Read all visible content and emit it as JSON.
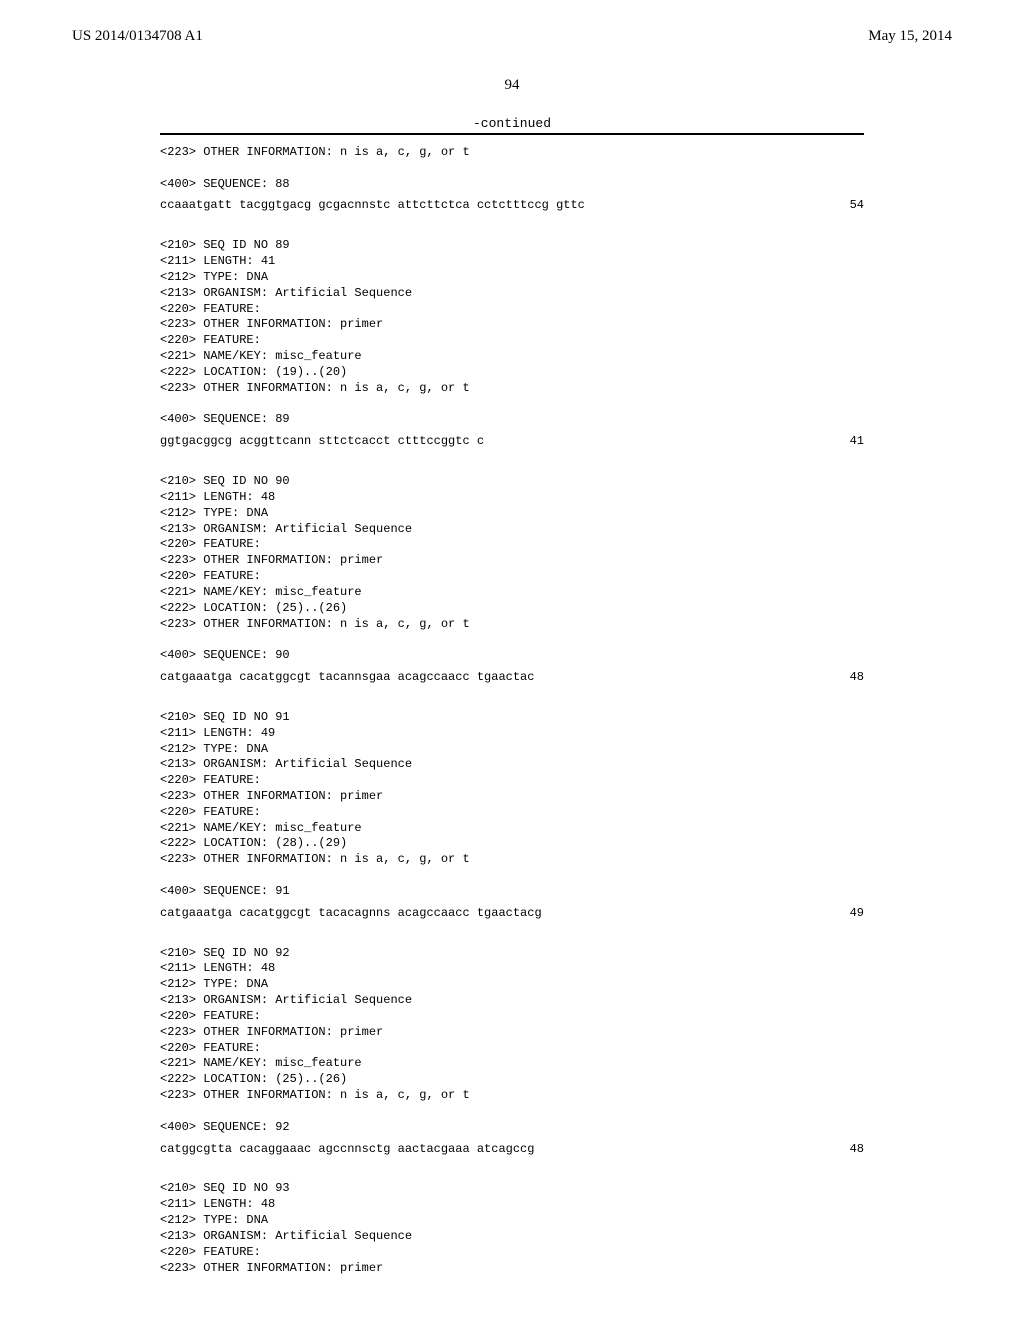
{
  "header": {
    "pub_num": "US 2014/0134708 A1",
    "pub_date": "May 15, 2014"
  },
  "page_num": "94",
  "continued_label": "-continued",
  "entries": [
    {
      "pre": [
        "<223> OTHER INFORMATION: n is a, c, g, or t",
        "",
        "<400> SEQUENCE: 88"
      ],
      "sequence": "ccaaatgatt tacggtgacg gcgacnnstc attcttctca cctctttccg gttc",
      "seqnum": "54"
    },
    {
      "pre": [
        "<210> SEQ ID NO 89",
        "<211> LENGTH: 41",
        "<212> TYPE: DNA",
        "<213> ORGANISM: Artificial Sequence",
        "<220> FEATURE:",
        "<223> OTHER INFORMATION: primer",
        "<220> FEATURE:",
        "<221> NAME/KEY: misc_feature",
        "<222> LOCATION: (19)..(20)",
        "<223> OTHER INFORMATION: n is a, c, g, or t",
        "",
        "<400> SEQUENCE: 89"
      ],
      "sequence": "ggtgacggcg acggttcann sttctcacct ctttccggtc c",
      "seqnum": "41"
    },
    {
      "pre": [
        "<210> SEQ ID NO 90",
        "<211> LENGTH: 48",
        "<212> TYPE: DNA",
        "<213> ORGANISM: Artificial Sequence",
        "<220> FEATURE:",
        "<223> OTHER INFORMATION: primer",
        "<220> FEATURE:",
        "<221> NAME/KEY: misc_feature",
        "<222> LOCATION: (25)..(26)",
        "<223> OTHER INFORMATION: n is a, c, g, or t",
        "",
        "<400> SEQUENCE: 90"
      ],
      "sequence": "catgaaatga cacatggcgt tacannsgaa acagccaacc tgaactac",
      "seqnum": "48"
    },
    {
      "pre": [
        "<210> SEQ ID NO 91",
        "<211> LENGTH: 49",
        "<212> TYPE: DNA",
        "<213> ORGANISM: Artificial Sequence",
        "<220> FEATURE:",
        "<223> OTHER INFORMATION: primer",
        "<220> FEATURE:",
        "<221> NAME/KEY: misc_feature",
        "<222> LOCATION: (28)..(29)",
        "<223> OTHER INFORMATION: n is a, c, g, or t",
        "",
        "<400> SEQUENCE: 91"
      ],
      "sequence": "catgaaatga cacatggcgt tacacagnns acagccaacc tgaactacg",
      "seqnum": "49"
    },
    {
      "pre": [
        "<210> SEQ ID NO 92",
        "<211> LENGTH: 48",
        "<212> TYPE: DNA",
        "<213> ORGANISM: Artificial Sequence",
        "<220> FEATURE:",
        "<223> OTHER INFORMATION: primer",
        "<220> FEATURE:",
        "<221> NAME/KEY: misc_feature",
        "<222> LOCATION: (25)..(26)",
        "<223> OTHER INFORMATION: n is a, c, g, or t",
        "",
        "<400> SEQUENCE: 92"
      ],
      "sequence": "catggcgtta cacaggaaac agccnnsctg aactacgaaa atcagccg",
      "seqnum": "48"
    },
    {
      "pre": [
        "<210> SEQ ID NO 93",
        "<211> LENGTH: 48",
        "<212> TYPE: DNA",
        "<213> ORGANISM: Artificial Sequence",
        "<220> FEATURE:",
        "<223> OTHER INFORMATION: primer"
      ],
      "sequence": null,
      "seqnum": null
    }
  ]
}
